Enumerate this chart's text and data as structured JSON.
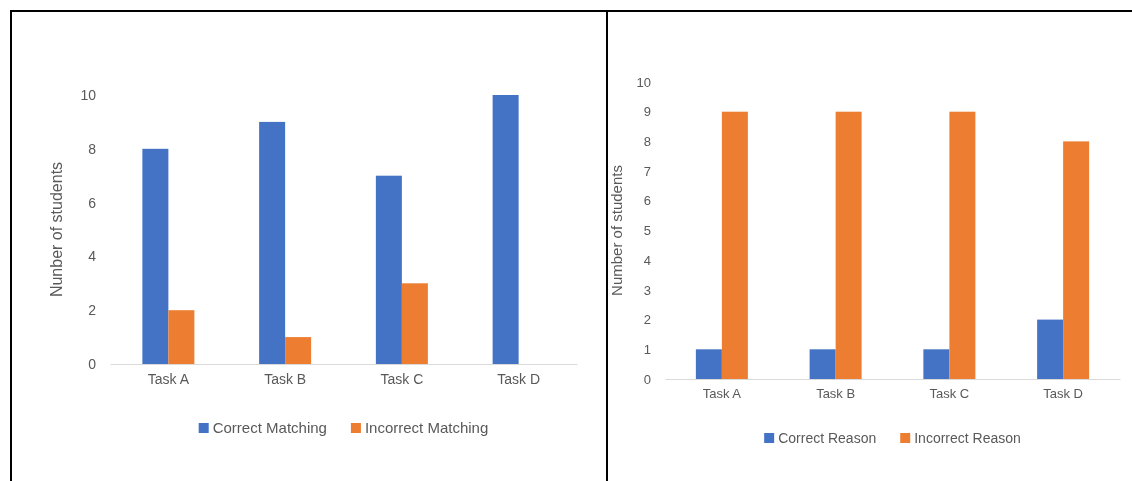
{
  "chart_data": [
    {
      "type": "bar",
      "ylabel": "Nunber of students",
      "categories": [
        "Task A",
        "Task B",
        "Task C",
        "Task D"
      ],
      "series": [
        {
          "name": "Correct Matching",
          "color": "#4472c4",
          "values": [
            8,
            9,
            7,
            10
          ]
        },
        {
          "name": "Incorrect Matching",
          "color": "#ed7d31",
          "values": [
            2,
            1,
            3,
            0
          ]
        }
      ],
      "ylim": [
        0,
        10
      ],
      "yticks": [
        0,
        2,
        4,
        6,
        8,
        10
      ],
      "grid": false,
      "legend": "bottom"
    },
    {
      "type": "bar",
      "ylabel": "Number of students",
      "categories": [
        "Task A",
        "Task B",
        "Task C",
        "Task D"
      ],
      "series": [
        {
          "name": "Correct Reason",
          "color": "#4472c4",
          "values": [
            1,
            1,
            1,
            2
          ]
        },
        {
          "name": "Incorrect Reason",
          "color": "#ed7d31",
          "values": [
            9,
            9,
            9,
            8
          ]
        }
      ],
      "ylim": [
        0,
        10
      ],
      "yticks": [
        0,
        1,
        2,
        3,
        4,
        5,
        6,
        7,
        8,
        9,
        10
      ],
      "grid": false,
      "legend": "bottom"
    }
  ]
}
